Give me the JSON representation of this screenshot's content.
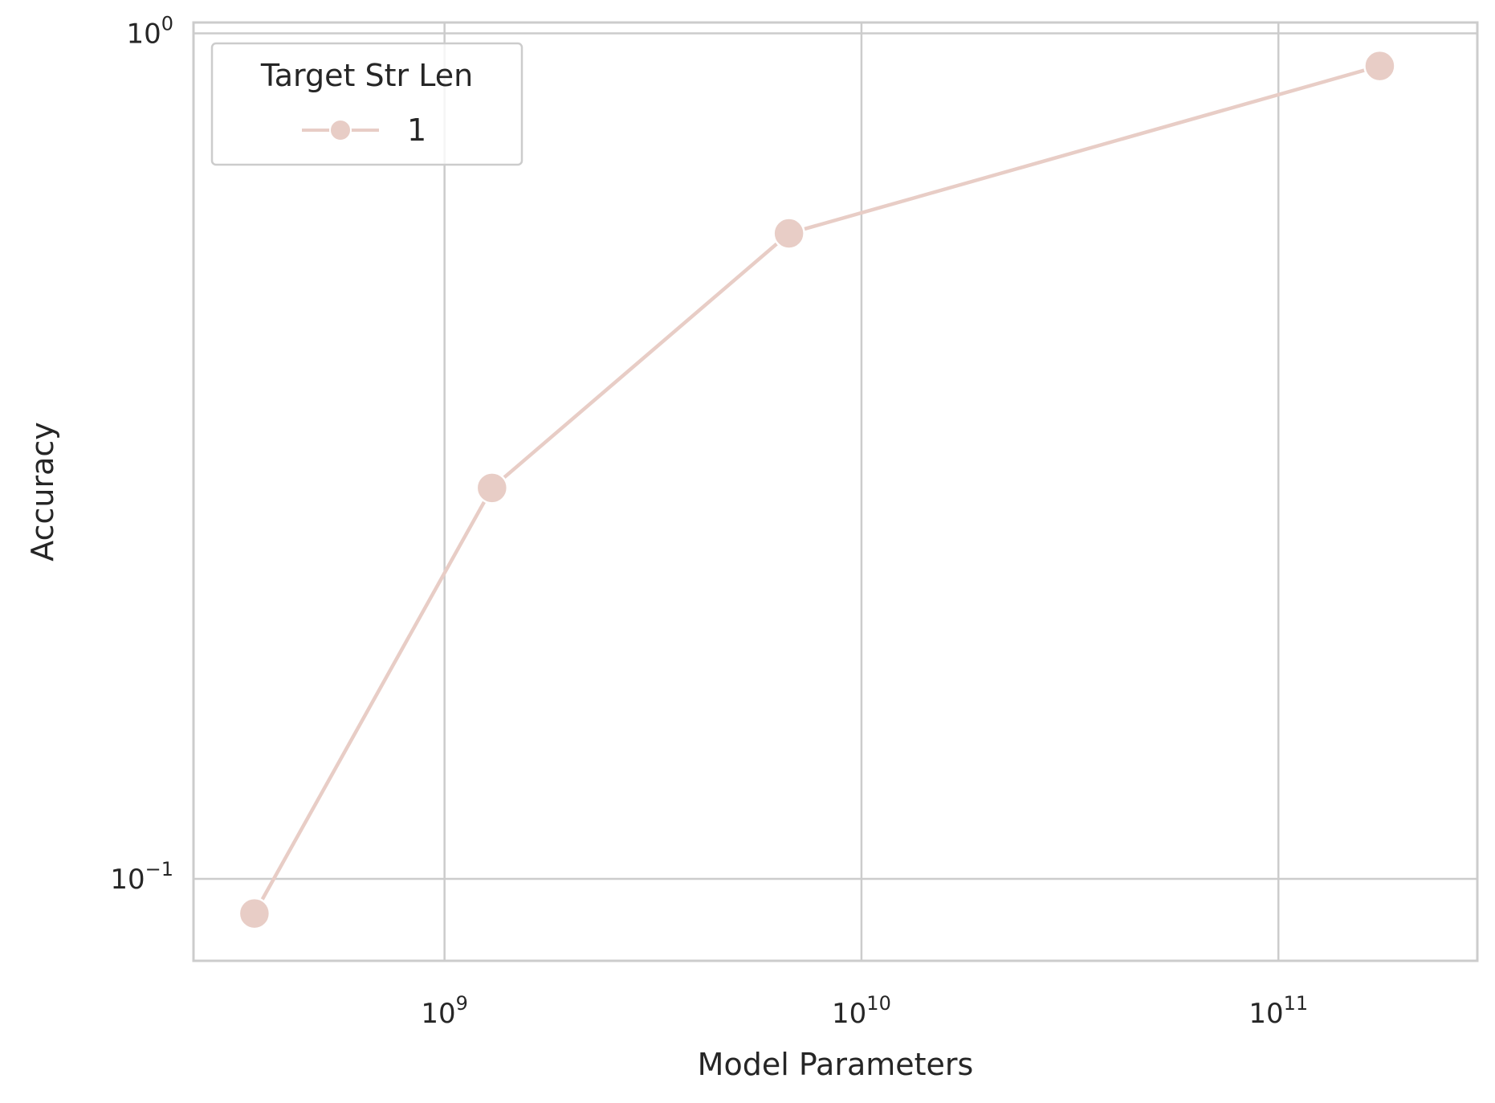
{
  "chart_data": {
    "type": "line",
    "xlabel": "Model Parameters",
    "ylabel": "Accuracy",
    "xscale": "log",
    "yscale": "log",
    "xlim": [
      250000000,
      300000000000
    ],
    "ylim": [
      0.08,
      1.03
    ],
    "x_ticks": [
      {
        "value": 1000000000,
        "base": "10",
        "exp": "9"
      },
      {
        "value": 10000000000,
        "base": "10",
        "exp": "10"
      },
      {
        "value": 100000000000,
        "base": "10",
        "exp": "11"
      }
    ],
    "y_ticks": [
      {
        "value": 0.1,
        "base": "10",
        "exp": "−1"
      },
      {
        "value": 1,
        "base": "10",
        "exp": "0"
      }
    ],
    "grid": true,
    "legend": {
      "title": "Target Str Len",
      "placement": "top-left"
    },
    "series": [
      {
        "name": "1",
        "color": "#e8cdc6",
        "x": [
          350000000,
          1300000000,
          6700000000,
          175000000000
        ],
        "y": [
          0.091,
          0.29,
          0.58,
          0.915
        ]
      }
    ]
  }
}
